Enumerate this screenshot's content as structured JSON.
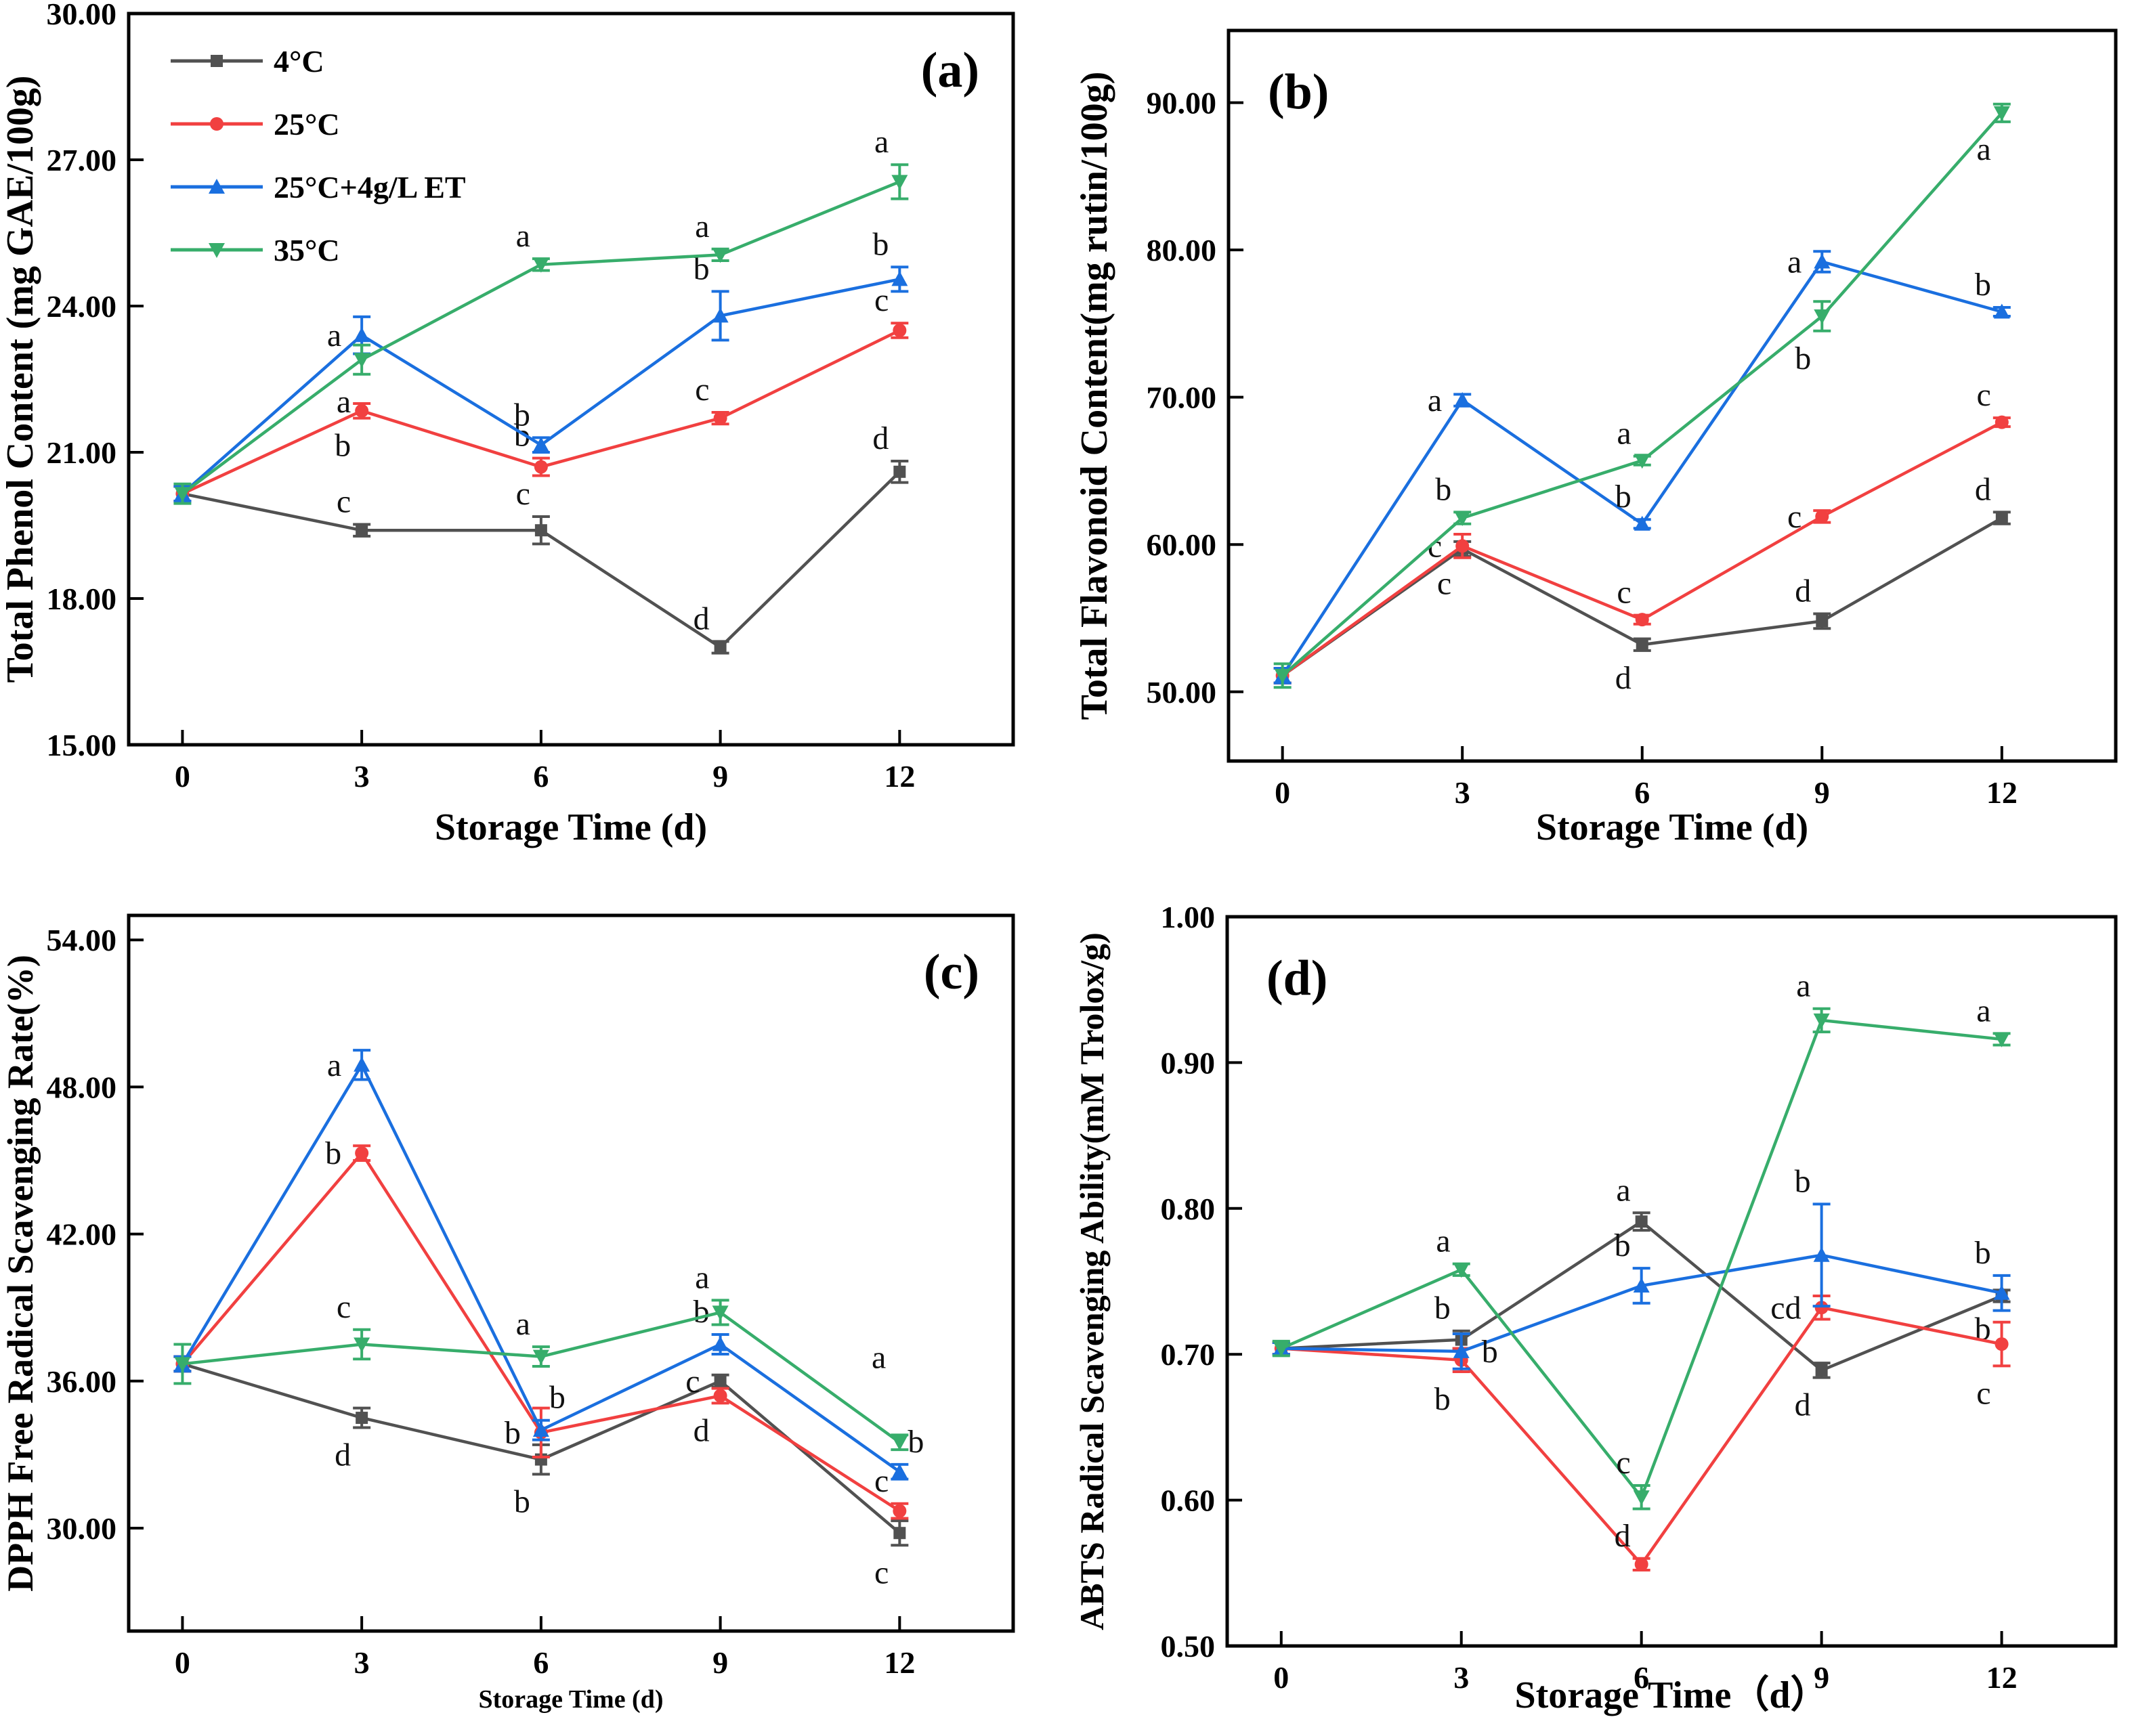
{
  "figure": {
    "background": "#ffffff",
    "axis_color": "#000000",
    "letter_color": "#111111"
  },
  "legend": {
    "items": [
      {
        "label": "4°C",
        "color": "#515151",
        "marker": "square"
      },
      {
        "label": "25°C",
        "color": "#F14040",
        "marker": "circle"
      },
      {
        "label": "25°C+4g/L ET",
        "color": "#1A6FDF",
        "marker": "triangle-up"
      },
      {
        "label": "35°C",
        "color": "#37AD6B",
        "marker": "triangle-down"
      }
    ]
  },
  "chart_data": [
    {
      "id": "a",
      "type": "line",
      "panel_label": "(a)",
      "panel_label_corner": "top-right",
      "show_legend": true,
      "xlabel": "Storage Time (d)",
      "ylabel": "Total Phenol Content (mg GAE/100g)",
      "x": [
        0,
        3,
        6,
        9,
        12
      ],
      "xticks": [
        0,
        3,
        6,
        9,
        12
      ],
      "xlim": [
        -0.9,
        13.9
      ],
      "ylim": [
        15,
        30
      ],
      "yticks": [
        15,
        18,
        21,
        24,
        27,
        30
      ],
      "ytick_decimals": 2,
      "grid": false,
      "series": [
        {
          "name": "4°C",
          "color": "#515151",
          "marker": "square",
          "values": [
            20.15,
            19.4,
            19.4,
            17.0,
            20.6
          ],
          "errors": [
            0.15,
            0.12,
            0.28,
            0.12,
            0.22
          ],
          "point_labels": [
            null,
            "c",
            "c",
            "d",
            "d"
          ],
          "label_pos": [
            null,
            "above-left",
            "above-left",
            "above-left",
            "above-left"
          ]
        },
        {
          "name": "25°C",
          "color": "#F14040",
          "marker": "circle",
          "values": [
            20.15,
            21.85,
            20.7,
            21.7,
            23.5
          ],
          "errors": [
            0.15,
            0.15,
            0.18,
            0.12,
            0.15
          ],
          "point_labels": [
            null,
            "b",
            "b",
            "c",
            "c"
          ],
          "label_pos": [
            null,
            "below-left",
            "above-left",
            "above-left",
            "above-left"
          ]
        },
        {
          "name": "25°C+4g/L ET",
          "color": "#1A6FDF",
          "marker": "triangle-up",
          "values": [
            20.15,
            23.4,
            21.15,
            23.8,
            24.55
          ],
          "errors": [
            0.15,
            0.38,
            0.15,
            0.5,
            0.25
          ],
          "point_labels": [
            null,
            "a",
            "b",
            "b",
            "b"
          ],
          "label_pos": [
            null,
            "left",
            "above-left",
            "above-left",
            "above-left"
          ]
        },
        {
          "name": "35°C",
          "color": "#37AD6B",
          "marker": "triangle-down",
          "values": [
            20.15,
            22.9,
            24.85,
            25.05,
            26.55
          ],
          "errors": [
            0.2,
            0.3,
            0.12,
            0.12,
            0.35
          ],
          "point_labels": [
            null,
            "a",
            "a",
            "a",
            "a"
          ],
          "label_pos": [
            null,
            "below-left",
            "above-left",
            "above-left",
            "above-left"
          ]
        }
      ]
    },
    {
      "id": "b",
      "type": "line",
      "panel_label": "(b)",
      "panel_label_corner": "top-left",
      "show_legend": false,
      "xlabel": "Storage Time (d)",
      "ylabel": "Total Flavonoid Content(mg rutin/100g)",
      "x": [
        0,
        3,
        6,
        9,
        12
      ],
      "xticks": [
        0,
        3,
        6,
        9,
        12
      ],
      "xlim": [
        -0.9,
        13.9
      ],
      "ylim": [
        45.3,
        94.9
      ],
      "yticks": [
        50,
        60,
        70,
        80,
        90
      ],
      "ytick_decimals": 2,
      "grid": false,
      "series": [
        {
          "name": "4°C",
          "color": "#515151",
          "marker": "square",
          "values": [
            51.1,
            59.7,
            53.2,
            54.8,
            61.8
          ],
          "errors": [
            0.5,
            0.5,
            0.4,
            0.5,
            0.4
          ],
          "point_labels": [
            null,
            "c",
            "d",
            "d",
            "d"
          ],
          "label_pos": [
            null,
            "below-left",
            "below-left",
            "above-left",
            "above-left"
          ]
        },
        {
          "name": "25°C",
          "color": "#F14040",
          "marker": "circle",
          "values": [
            51.1,
            59.9,
            54.9,
            61.9,
            68.3
          ],
          "errors": [
            0.5,
            0.8,
            0.3,
            0.4,
            0.3
          ],
          "point_labels": [
            null,
            "c",
            "c",
            "c",
            "c"
          ],
          "label_pos": [
            null,
            "left",
            "above-left",
            "left",
            "above-left"
          ]
        },
        {
          "name": "25°C+4g/L ET",
          "color": "#1A6FDF",
          "marker": "triangle-up",
          "values": [
            51.1,
            69.8,
            61.4,
            79.2,
            75.8
          ],
          "errors": [
            0.5,
            0.4,
            0.3,
            0.7,
            0.3
          ],
          "point_labels": [
            null,
            "a",
            "b",
            "a",
            "b"
          ],
          "label_pos": [
            null,
            "left",
            "above-left",
            "left",
            "above-left"
          ]
        },
        {
          "name": "35°C",
          "color": "#37AD6B",
          "marker": "triangle-down",
          "values": [
            51.1,
            61.8,
            65.7,
            75.5,
            89.3
          ],
          "errors": [
            0.8,
            0.4,
            0.3,
            1.0,
            0.6
          ],
          "point_labels": [
            null,
            "b",
            "a",
            "b",
            "a"
          ],
          "label_pos": [
            null,
            "above-left",
            "above-left",
            "below-left",
            "below-left"
          ]
        }
      ]
    },
    {
      "id": "c",
      "type": "line",
      "panel_label": "(c)",
      "panel_label_corner": "top-right",
      "show_legend": false,
      "xlabel": "Storage Time (d)",
      "ylabel": "DPPH Free Radical Scavenging Rate(%)",
      "x": [
        0,
        3,
        6,
        9,
        12
      ],
      "xticks": [
        0,
        3,
        6,
        9,
        12
      ],
      "xlim": [
        -0.9,
        13.9
      ],
      "ylim": [
        25.8,
        55.0
      ],
      "yticks": [
        30,
        36,
        42,
        48,
        54
      ],
      "ytick_decimals": 2,
      "grid": false,
      "series": [
        {
          "name": "4°C",
          "color": "#515151",
          "marker": "square",
          "values": [
            36.7,
            34.5,
            32.8,
            36.0,
            29.8
          ],
          "errors": [
            0.3,
            0.4,
            0.6,
            0.25,
            0.5
          ],
          "point_labels": [
            null,
            "d",
            "b",
            "c",
            "c"
          ],
          "label_pos": [
            null,
            "below-left",
            "below-left",
            "left",
            "below-left"
          ]
        },
        {
          "name": "25°C",
          "color": "#F14040",
          "marker": "circle",
          "values": [
            36.7,
            45.3,
            33.9,
            35.4,
            30.7
          ],
          "errors": [
            0.3,
            0.3,
            1.0,
            0.3,
            0.3
          ],
          "point_labels": [
            null,
            "b",
            "b",
            "d",
            "c"
          ],
          "label_pos": [
            null,
            "left",
            "left",
            "below-left",
            "above-left"
          ]
        },
        {
          "name": "25°C+4g/L ET",
          "color": "#1A6FDF",
          "marker": "triangle-up",
          "values": [
            36.7,
            48.9,
            34.0,
            37.5,
            32.3
          ],
          "errors": [
            0.3,
            0.6,
            0.4,
            0.4,
            0.3
          ],
          "point_labels": [
            null,
            "a",
            "b",
            "b",
            "b"
          ],
          "label_pos": [
            null,
            "left",
            "above-right",
            "above-left",
            "above-right"
          ]
        },
        {
          "name": "35°C",
          "color": "#37AD6B",
          "marker": "triangle-down",
          "values": [
            36.7,
            37.5,
            37.0,
            38.8,
            33.5
          ],
          "errors": [
            0.8,
            0.6,
            0.4,
            0.5,
            0.3
          ],
          "point_labels": [
            null,
            "c",
            "a",
            "a",
            "a"
          ],
          "label_pos": [
            null,
            "above-left",
            "above-left",
            "above-left",
            "above-far"
          ]
        }
      ]
    },
    {
      "id": "d",
      "type": "line",
      "panel_label": "(d)",
      "panel_label_corner": "top-left",
      "show_legend": false,
      "xlabel": "Storage Time（d）",
      "ylabel": "ABTS Radical Scavenging Ability(mM Trolox/g)",
      "x": [
        0,
        3,
        6,
        9,
        12
      ],
      "xticks": [
        0,
        3,
        6,
        9,
        12
      ],
      "xlim": [
        -0.9,
        13.9
      ],
      "ylim": [
        0.5,
        1.0
      ],
      "yticks": [
        0.5,
        0.6,
        0.7,
        0.8,
        0.9,
        1.0
      ],
      "ytick_decimals": 2,
      "grid": false,
      "series": [
        {
          "name": "4°C",
          "color": "#515151",
          "marker": "square",
          "values": [
            0.704,
            0.71,
            0.791,
            0.689,
            0.74
          ],
          "errors": [
            0.004,
            0.006,
            0.006,
            0.005,
            0.004
          ],
          "point_labels": [
            null,
            "b",
            "a",
            "d",
            "b"
          ],
          "label_pos": [
            null,
            "above-left",
            "above-left",
            "below-left",
            "below-left"
          ]
        },
        {
          "name": "25°C",
          "color": "#F14040",
          "marker": "circle",
          "values": [
            0.704,
            0.696,
            0.556,
            0.732,
            0.707
          ],
          "errors": [
            0.004,
            0.008,
            0.004,
            0.008,
            0.015
          ],
          "point_labels": [
            null,
            "b",
            "d",
            "cd",
            "c"
          ],
          "label_pos": [
            null,
            "below-left",
            "above-left",
            "left",
            "below-left"
          ]
        },
        {
          "name": "25°C+4g/L ET",
          "color": "#1A6FDF",
          "marker": "triangle-up",
          "values": [
            0.704,
            0.702,
            0.747,
            0.768,
            0.742
          ],
          "errors": [
            0.004,
            0.012,
            0.012,
            0.035,
            0.012
          ],
          "point_labels": [
            null,
            "b",
            "b",
            "b",
            "b"
          ],
          "label_pos": [
            null,
            "right",
            "above-left",
            "above-left",
            "above-left"
          ]
        },
        {
          "name": "35°C",
          "color": "#37AD6B",
          "marker": "triangle-down",
          "values": [
            0.704,
            0.758,
            0.602,
            0.929,
            0.916
          ],
          "errors": [
            0.005,
            0.004,
            0.008,
            0.008,
            0.004
          ],
          "point_labels": [
            null,
            "a",
            "c",
            "a",
            "a"
          ],
          "label_pos": [
            null,
            "above-left",
            "above-left",
            "above-left",
            "above-left"
          ]
        }
      ]
    }
  ]
}
